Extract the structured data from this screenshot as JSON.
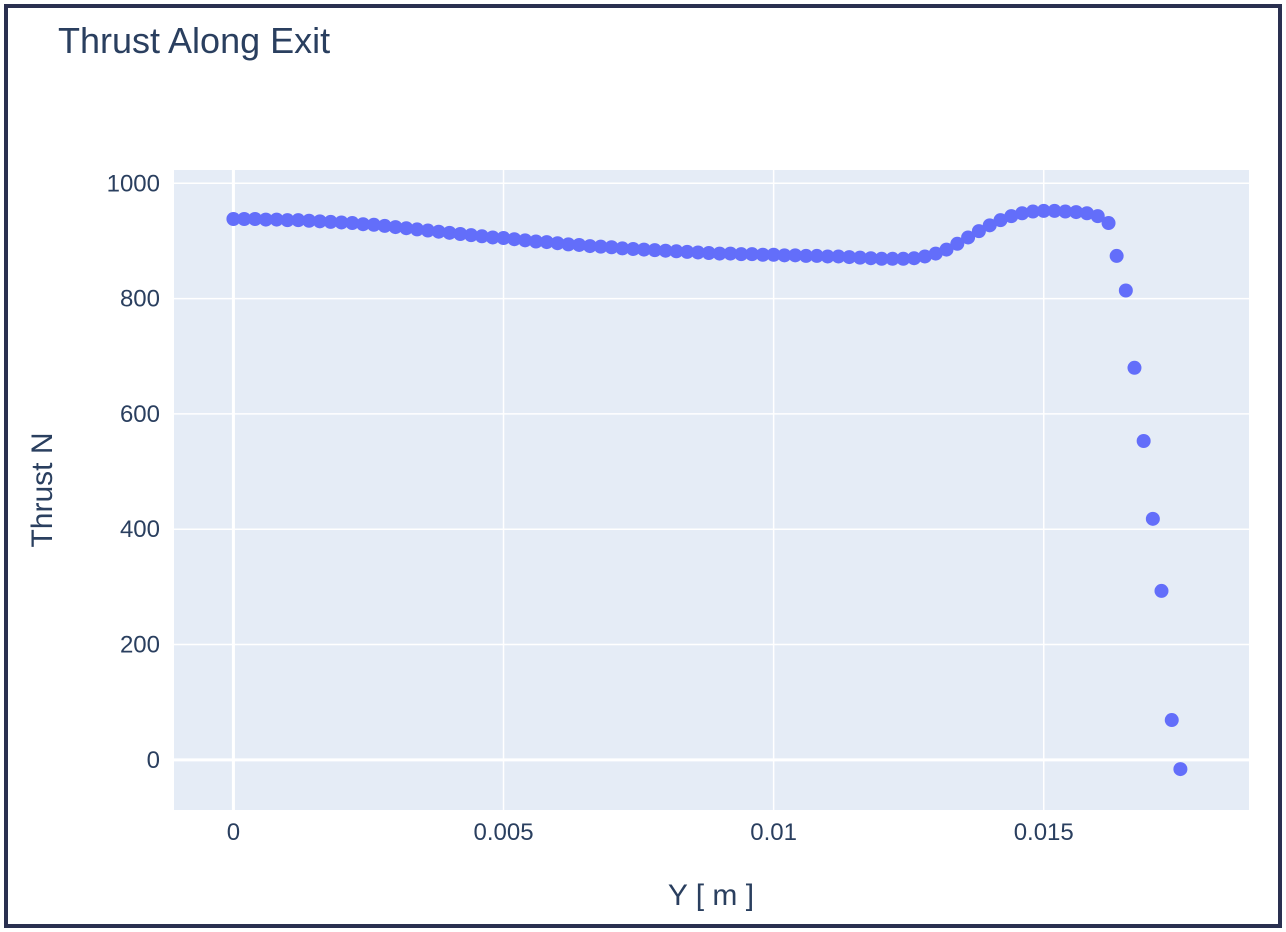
{
  "chart_data": {
    "type": "scatter",
    "title": "Thrust Along Exit",
    "xlabel": "Y [ m ]",
    "ylabel": "Thrust N",
    "xlim": [
      -0.0011,
      0.0188
    ],
    "ylim": [
      -87,
      1023
    ],
    "x_ticks": [
      0,
      0.005,
      0.01,
      0.015
    ],
    "x_tick_labels": [
      "0",
      "0.005",
      "0.01",
      "0.015"
    ],
    "y_ticks": [
      0,
      200,
      400,
      600,
      800,
      1000
    ],
    "y_tick_labels": [
      "0",
      "200",
      "400",
      "600",
      "800",
      "1000"
    ],
    "grid": true,
    "plot_bg": "#e5ecf6",
    "marker_color": "#636efa",
    "series": [
      {
        "x": [
          0,
          0.0002,
          0.0004,
          0.0006,
          0.0008,
          0.001,
          0.0012,
          0.0014,
          0.0016,
          0.0018,
          0.002,
          0.0022,
          0.0024,
          0.0026,
          0.0028,
          0.003,
          0.0032,
          0.0034,
          0.0036,
          0.0038,
          0.004,
          0.0042,
          0.0044,
          0.0046,
          0.0048,
          0.005,
          0.0052,
          0.0054,
          0.0056,
          0.0058,
          0.006,
          0.0062,
          0.0064,
          0.0066,
          0.0068,
          0.007,
          0.0072,
          0.0074,
          0.0076,
          0.0078,
          0.008,
          0.0082,
          0.0084,
          0.0086,
          0.0088,
          0.009,
          0.0092,
          0.0094,
          0.0096,
          0.0098,
          0.01,
          0.0102,
          0.0104,
          0.0106,
          0.0108,
          0.011,
          0.0112,
          0.0114,
          0.0116,
          0.0118,
          0.012,
          0.0122,
          0.0124,
          0.0126,
          0.0128,
          0.013,
          0.0132,
          0.0134,
          0.0136,
          0.0138,
          0.014,
          0.0142,
          0.0144,
          0.0146,
          0.0148,
          0.015,
          0.0152,
          0.0154,
          0.0156,
          0.0158,
          0.016,
          0.0162,
          0.01635,
          0.01652,
          0.01668,
          0.01685,
          0.01702,
          0.01718,
          0.01737,
          0.01753
        ],
        "y": [
          938,
          938,
          938,
          937,
          937,
          936,
          936,
          935,
          934,
          933,
          932,
          931,
          929,
          928,
          926,
          924,
          922,
          920,
          918,
          916,
          914,
          912,
          910,
          908,
          906,
          905,
          903,
          901,
          899,
          898,
          896,
          894,
          893,
          891,
          890,
          889,
          887,
          886,
          885,
          884,
          883,
          882,
          881,
          880,
          879,
          878,
          878,
          877,
          877,
          876,
          876,
          875,
          875,
          874,
          874,
          873,
          873,
          872,
          871,
          870,
          869,
          869,
          869,
          870,
          873,
          878,
          885,
          895,
          906,
          917,
          927,
          936,
          943,
          948,
          951,
          952,
          952,
          951,
          950,
          948,
          943,
          931,
          874,
          814,
          680,
          553,
          418,
          293,
          69,
          -16
        ]
      }
    ]
  }
}
